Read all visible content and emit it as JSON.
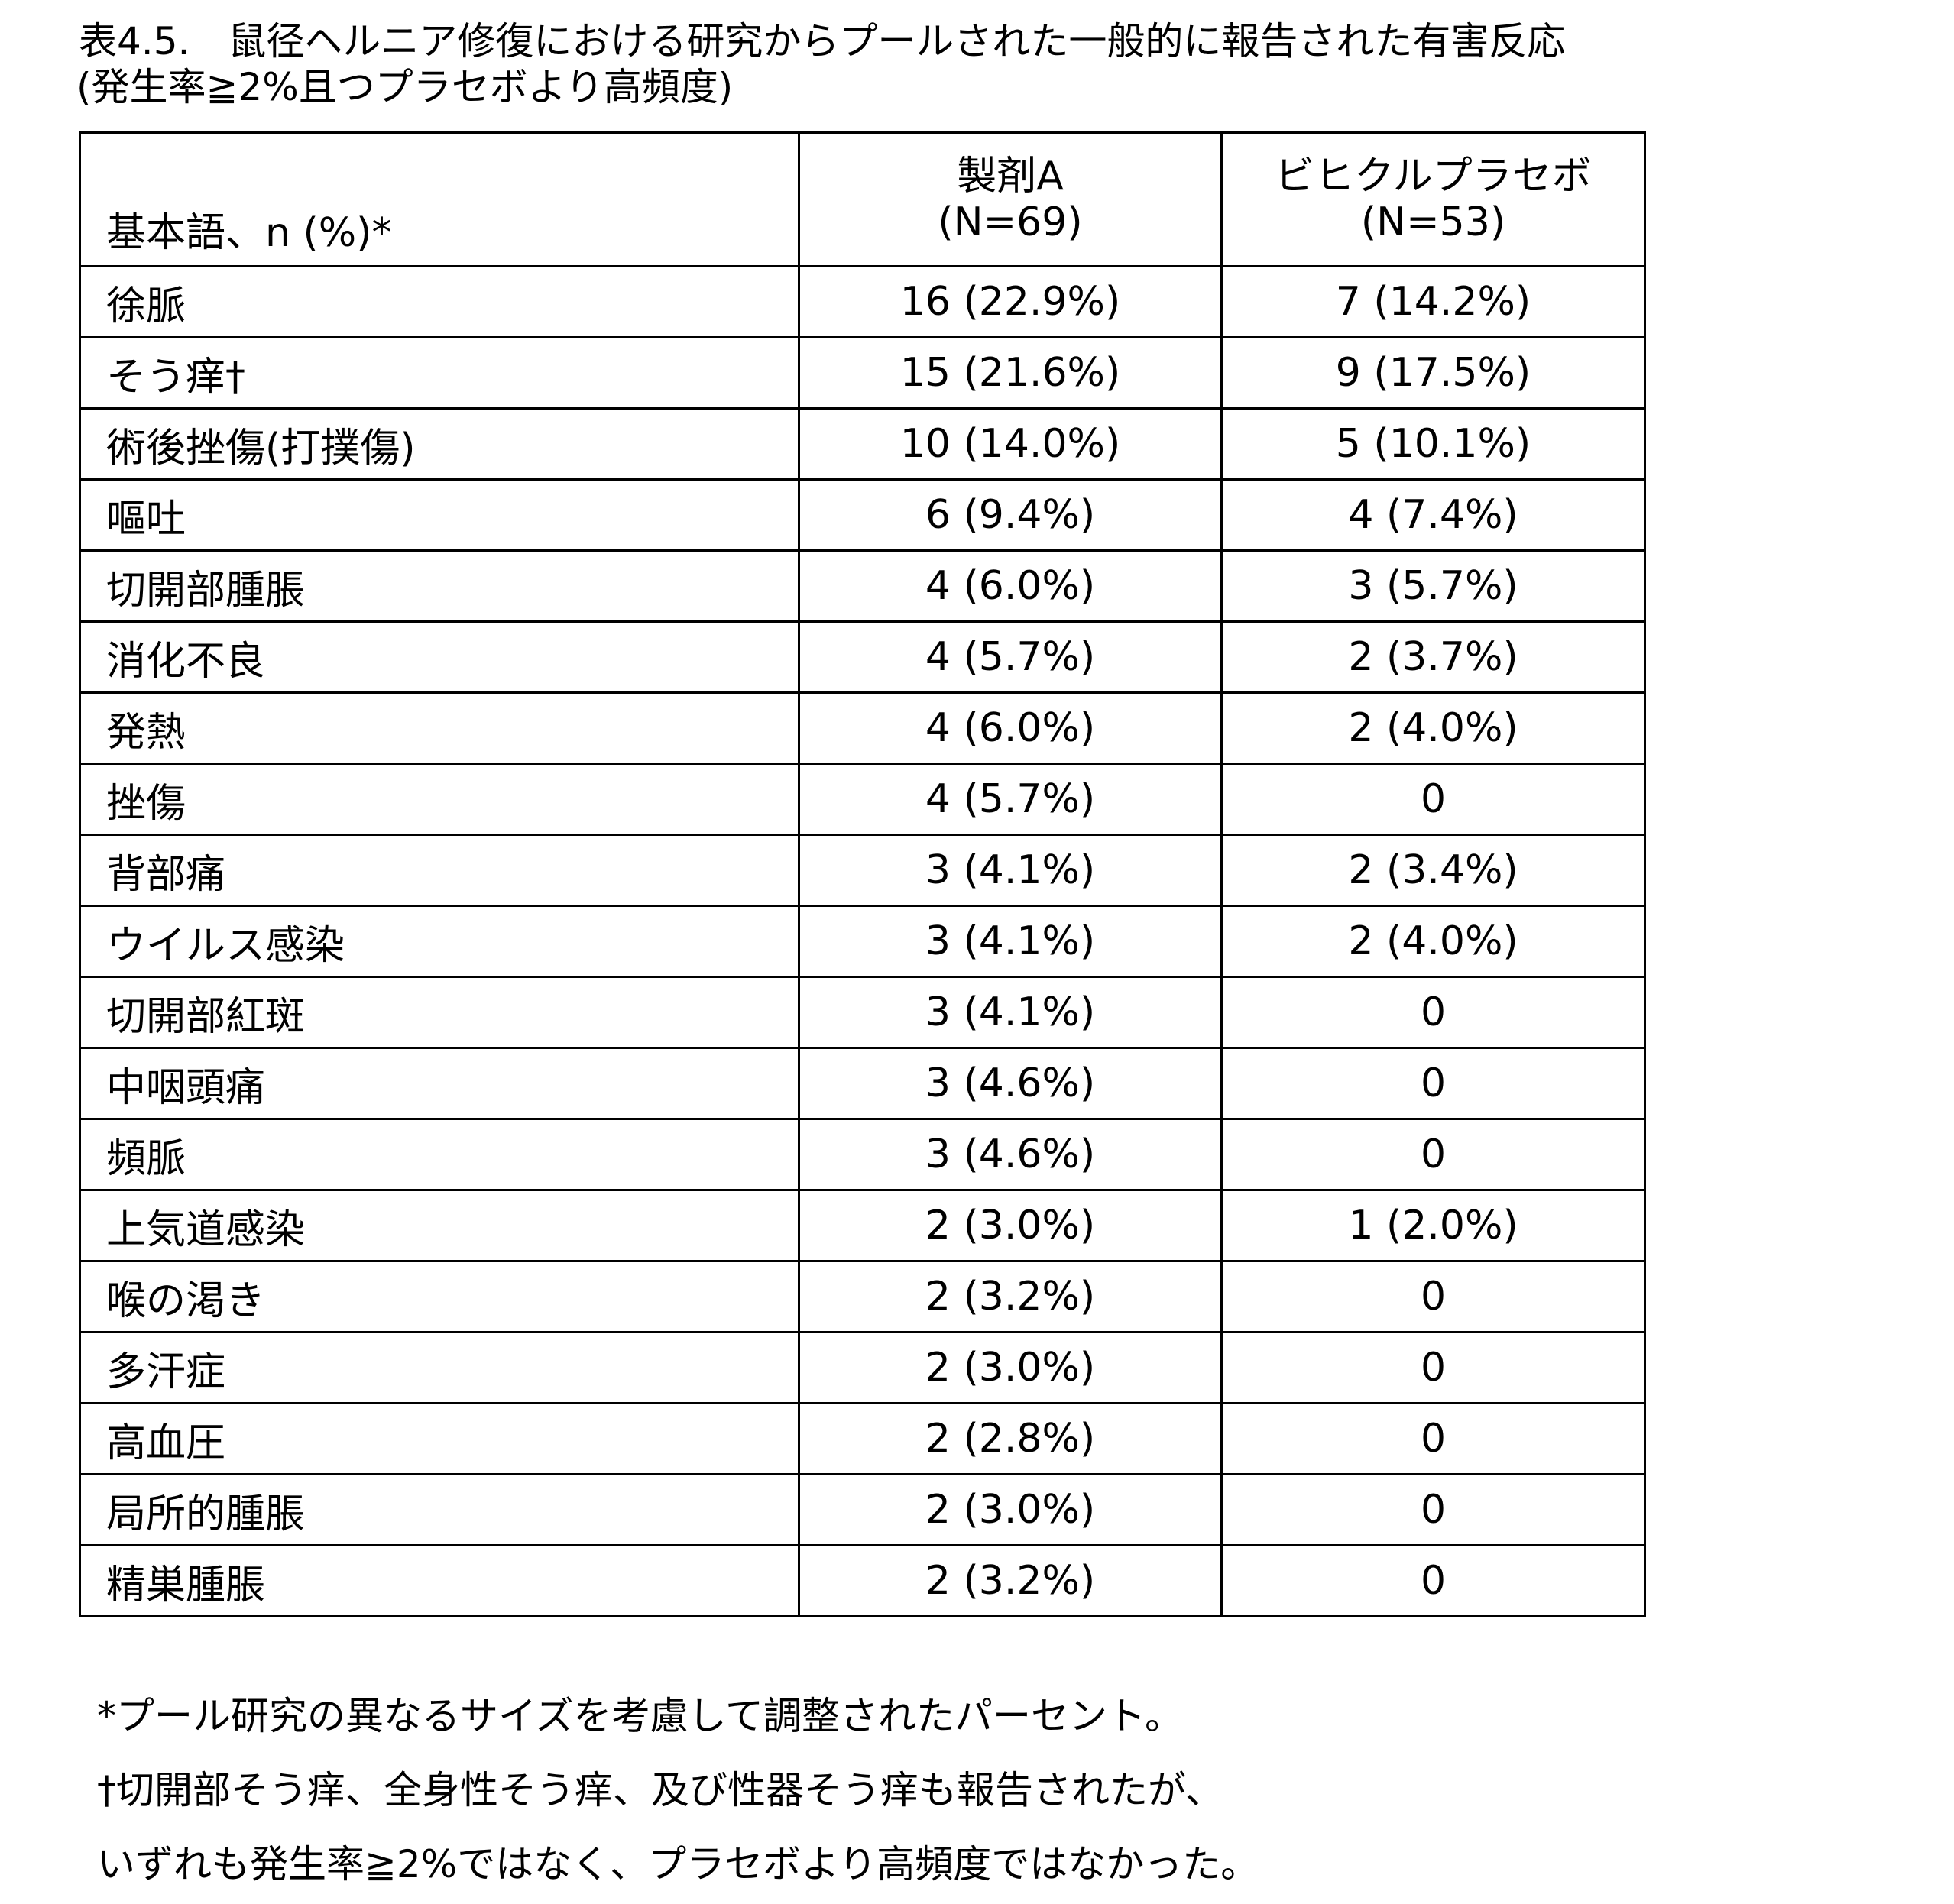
{
  "title": {
    "line1": "表4.5.　鼠径ヘルニア修復における研究からプールされた一般的に報告された有害反応",
    "line2": "(発生率≧2%且つプラセボより高頻度)"
  },
  "table": {
    "header": {
      "term": "基本語、n (%)*",
      "drug_a_name": "製剤A",
      "drug_a_n": "(N=69)",
      "placebo_name": "ビヒクルプラセボ",
      "placebo_n": "(N=53)"
    },
    "rows": [
      {
        "term": "徐脈",
        "drug_a": "16 (22.9%)",
        "placebo": "7 (14.2%)"
      },
      {
        "term": "そう痒†",
        "drug_a": "15 (21.6%)",
        "placebo": "9 (17.5%)"
      },
      {
        "term": "術後挫傷(打撲傷)",
        "drug_a": "10 (14.0%)",
        "placebo": "5 (10.1%)"
      },
      {
        "term": "嘔吐",
        "drug_a": "6 (9.4%)",
        "placebo": "4 (7.4%)"
      },
      {
        "term": "切開部腫脹",
        "drug_a": "4 (6.0%)",
        "placebo": "3 (5.7%)"
      },
      {
        "term": "消化不良",
        "drug_a": "4 (5.7%)",
        "placebo": "2 (3.7%)"
      },
      {
        "term": "発熱",
        "drug_a": "4 (6.0%)",
        "placebo": "2 (4.0%)"
      },
      {
        "term": "挫傷",
        "drug_a": "4 (5.7%)",
        "placebo": "0"
      },
      {
        "term": "背部痛",
        "drug_a": "3 (4.1%)",
        "placebo": "2 (3.4%)"
      },
      {
        "term": "ウイルス感染",
        "drug_a": "3 (4.1%)",
        "placebo": "2 (4.0%)"
      },
      {
        "term": "切開部紅斑",
        "drug_a": "3 (4.1%)",
        "placebo": "0"
      },
      {
        "term": "中咽頭痛",
        "drug_a": "3 (4.6%)",
        "placebo": "0"
      },
      {
        "term": "頻脈",
        "drug_a": "3 (4.6%)",
        "placebo": "0"
      },
      {
        "term": "上気道感染",
        "drug_a": "2 (3.0%)",
        "placebo": "1 (2.0%)"
      },
      {
        "term": "喉の渇き",
        "drug_a": "2 (3.2%)",
        "placebo": "0"
      },
      {
        "term": "多汗症",
        "drug_a": "2 (3.0%)",
        "placebo": "0"
      },
      {
        "term": "高血圧",
        "drug_a": "2 (2.8%)",
        "placebo": "0"
      },
      {
        "term": "局所的腫脹",
        "drug_a": "2 (3.0%)",
        "placebo": "0"
      },
      {
        "term": "精巣腫脹",
        "drug_a": "2 (3.2%)",
        "placebo": "0"
      }
    ]
  },
  "footnotes": [
    "*プール研究の異なるサイズを考慮して調整されたパーセント。",
    "†切開部そう痒、全身性そう痒、及び性器そう痒も報告されたが、",
    "いずれも発生率≧2%ではなく、プラセボより高頻度ではなかった。"
  ]
}
